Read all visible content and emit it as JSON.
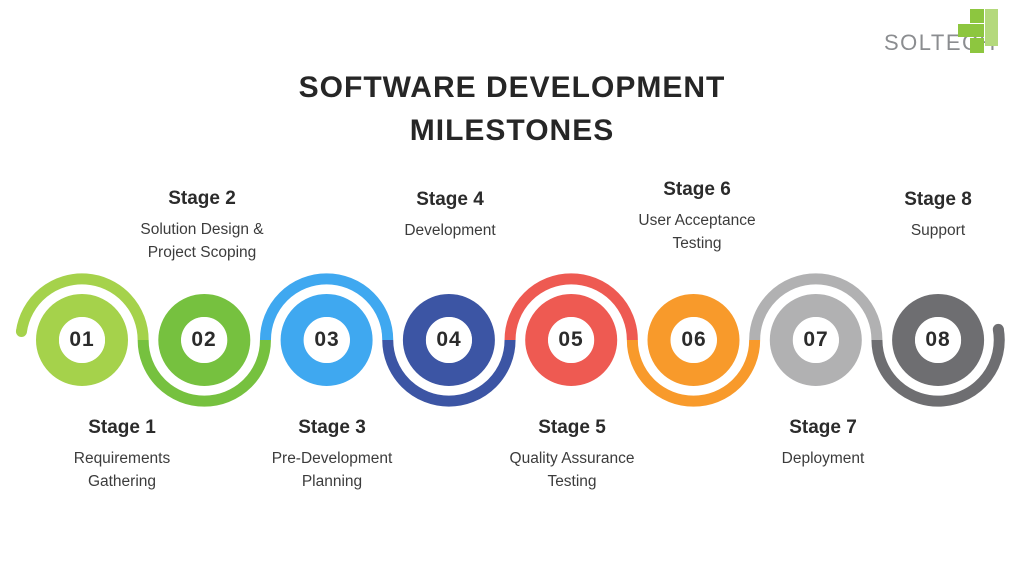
{
  "background_color": "#ffffff",
  "logo": {
    "text": "SOLTECH",
    "text_color": "#8b8d90",
    "mark_green": "#8dc63f",
    "mark_light_green": "#b4d97c"
  },
  "title": {
    "text": "SOFTWARE DEVELOPMENT\nMILESTONES",
    "color": "#262626"
  },
  "number_color": "#2b2b2b",
  "stages": [
    {
      "number": "01",
      "title": "Stage 1",
      "subtitle": "Requirements\nGathering",
      "color": "#a5d24b",
      "label_position": "below"
    },
    {
      "number": "02",
      "title": "Stage 2",
      "subtitle": "Solution Design &\nProject Scoping",
      "color": "#76c13f",
      "label_position": "above"
    },
    {
      "number": "03",
      "title": "Stage 3",
      "subtitle": "Pre-Development\nPlanning",
      "color": "#3fa8f0",
      "label_position": "below"
    },
    {
      "number": "04",
      "title": "Stage 4",
      "subtitle": "Development",
      "color": "#3c55a4",
      "label_position": "above"
    },
    {
      "number": "05",
      "title": "Stage 5",
      "subtitle": "Quality Assurance\nTesting",
      "color": "#ee5a52",
      "label_position": "below"
    },
    {
      "number": "06",
      "title": "Stage 6",
      "subtitle": "User Acceptance\nTesting",
      "color": "#f89a2b",
      "label_position": "above"
    },
    {
      "number": "07",
      "title": "Stage 7",
      "subtitle": "Deployment",
      "color": "#b1b1b2",
      "label_position": "below"
    },
    {
      "number": "08",
      "title": "Stage 8",
      "subtitle": "Support",
      "color": "#6e6e71",
      "label_position": "above"
    }
  ]
}
